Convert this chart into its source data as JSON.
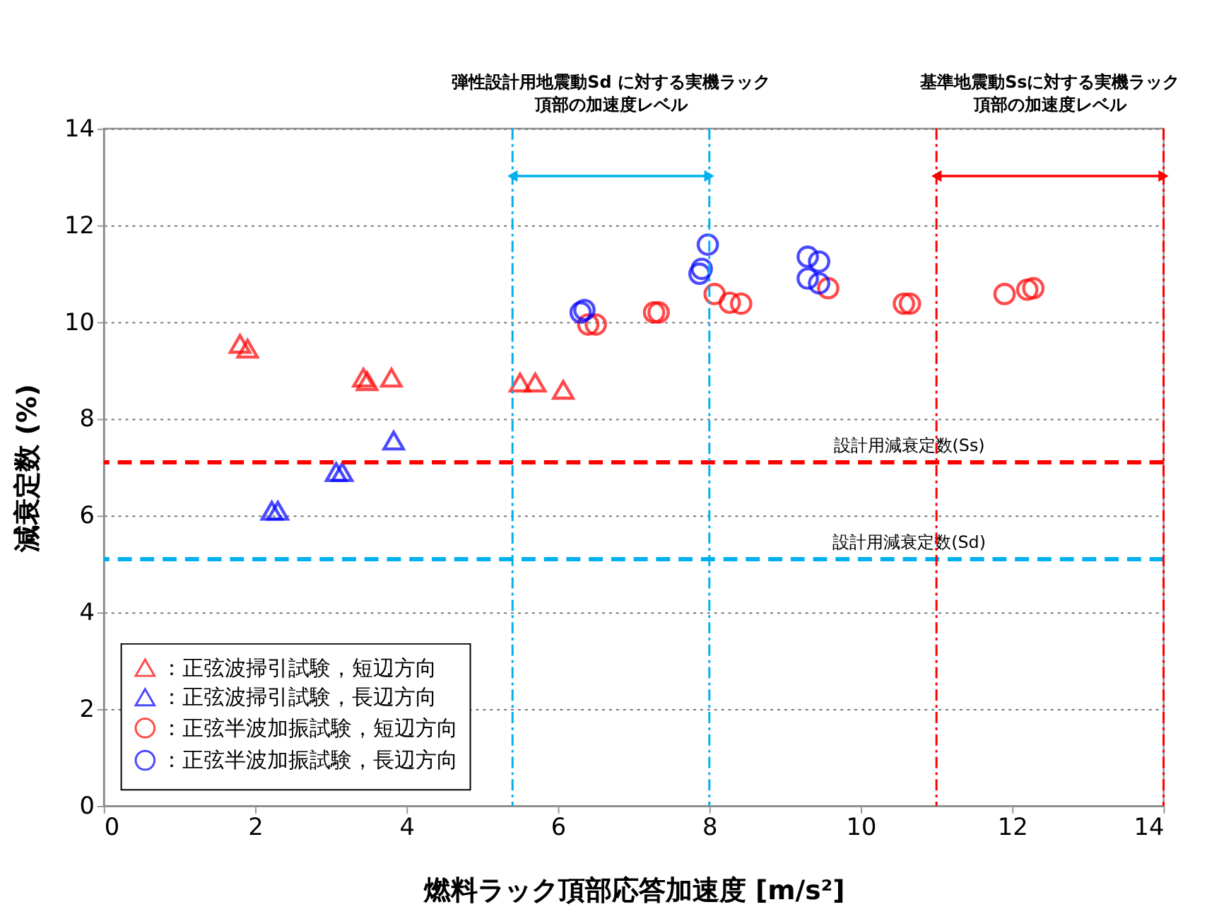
{
  "chart_data": {
    "type": "scatter",
    "xlabel": "燃料ラック頂部応答加速度 [m/s²]",
    "ylabel": "減衰定数 (%)",
    "xlim": [
      0,
      14
    ],
    "xticks": [
      0,
      2,
      4,
      6,
      8,
      10,
      12,
      14
    ],
    "ylim": [
      0,
      14
    ],
    "yticks": [
      0,
      2,
      4,
      6,
      8,
      10,
      12,
      14
    ],
    "grid": "y",
    "legend": "bottom left",
    "series": [
      {
        "name": "：正弦波掃引試験，短辺方向",
        "color": "#ff0000",
        "marker": "triangle",
        "x": [
          1.8,
          1.9,
          3.43,
          3.48,
          3.8,
          5.5,
          5.7,
          6.07
        ],
        "values": [
          9.55,
          9.45,
          8.85,
          8.78,
          8.85,
          8.75,
          8.75,
          8.6
        ]
      },
      {
        "name": "：正弦波掃引試験，長辺方向",
        "color": "#0000ff",
        "marker": "triangle",
        "x": [
          3.83,
          3.07,
          3.15,
          2.22,
          2.3
        ],
        "values": [
          7.55,
          6.9,
          6.9,
          6.1,
          6.1
        ]
      },
      {
        "name": "：正弦半波加振試験，短辺方向",
        "color": "#ff0000",
        "marker": "circle",
        "x": [
          6.4,
          6.5,
          7.27,
          7.33,
          8.07,
          8.27,
          8.42,
          9.57,
          10.57,
          10.65,
          11.9,
          12.2,
          12.28
        ],
        "values": [
          9.95,
          9.95,
          10.2,
          10.2,
          10.58,
          10.4,
          10.38,
          10.7,
          10.38,
          10.38,
          10.58,
          10.67,
          10.7
        ]
      },
      {
        "name": "：正弦半波加振試験，長辺方向",
        "color": "#0000ff",
        "marker": "circle",
        "x": [
          6.3,
          6.35,
          7.98,
          7.9,
          7.87,
          9.3,
          9.45,
          9.3,
          9.45
        ],
        "values": [
          10.2,
          10.25,
          11.6,
          11.1,
          11.0,
          11.35,
          11.25,
          10.9,
          10.8
        ]
      }
    ],
    "ref_lines": [
      {
        "axis": "y",
        "value": 7.1,
        "label": "設計用減衰定数(Ss)",
        "color": "#ff0000",
        "line_style": "dashed"
      },
      {
        "axis": "y",
        "value": 5.1,
        "label": "設計用減衰定数(Sd)",
        "color": "#00b0f0",
        "line_style": "dashed"
      },
      {
        "axis": "x",
        "value": 5.4,
        "color": "#00b0f0",
        "line_style": "dashed"
      },
      {
        "axis": "x",
        "value": 8.0,
        "color": "#00b0f0",
        "line_style": "dashed"
      },
      {
        "axis": "x",
        "value": 11.0,
        "color": "#ff0000",
        "line_style": "dashed"
      },
      {
        "axis": "x",
        "value": 14.0,
        "color": "#ff0000",
        "line_style": "dashed"
      }
    ],
    "annotations": [
      "弾性設計用地震動Sd に対する実機ラック",
      "頂部の加速度レベル",
      "基準地震動Ssに対する実機ラック",
      "頂部の加速度レベル"
    ]
  }
}
